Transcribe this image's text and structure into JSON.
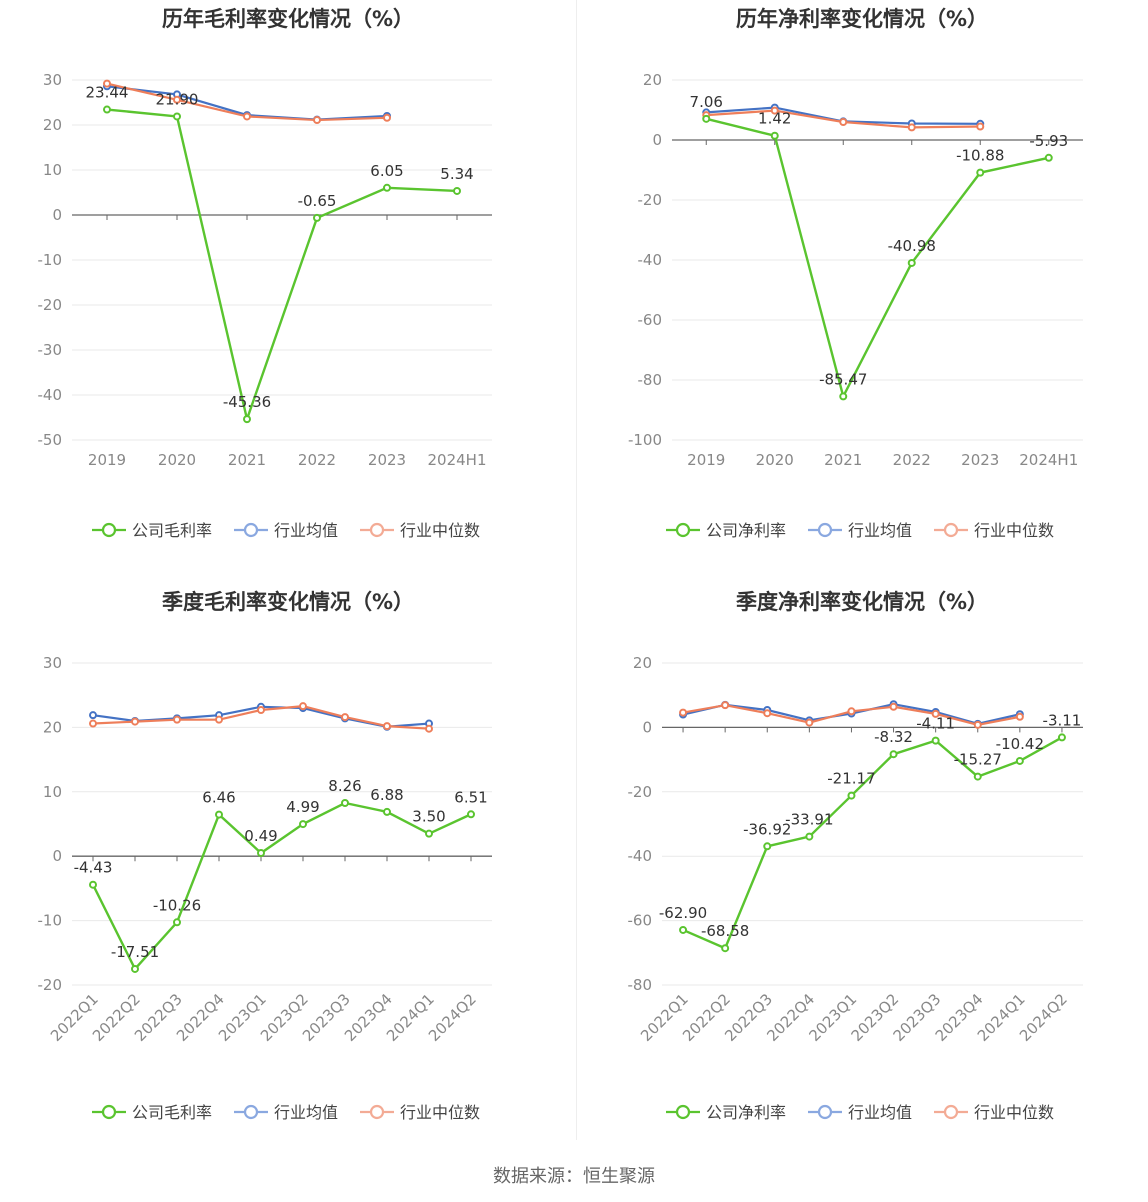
{
  "colors": {
    "company": "#5ac42f",
    "industry_avg": "#4472c4",
    "industry_median": "#ee7e5a",
    "legend_avg": "#8aa8e0",
    "legend_median": "#f3ab95",
    "grid": "#e9e9e9",
    "axis": "#666666",
    "tick_text": "#888888",
    "label_text": "#333333",
    "title_text": "#333333"
  },
  "source": "数据来源：恒生聚源",
  "charts": [
    {
      "id": "annual-gross",
      "type": "line",
      "title": "历年毛利率变化情况（%）",
      "categories": [
        "2019",
        "2020",
        "2021",
        "2022",
        "2023",
        "2024H1"
      ],
      "ylim": [
        -50,
        30
      ],
      "yticks": [
        30,
        20,
        10,
        0,
        -10,
        -20,
        -30,
        -40,
        -50
      ],
      "rotate_labels": false,
      "legend": [
        "公司毛利率",
        "行业均值",
        "行业中位数"
      ],
      "series": [
        {
          "name": "公司毛利率",
          "role": "company",
          "values": [
            23.44,
            21.9,
            -45.36,
            -0.65,
            6.05,
            5.34
          ],
          "labels": [
            "23.44",
            "21.90",
            "-45.36",
            "-0.65",
            "6.05",
            "5.34"
          ]
        },
        {
          "name": "行业均值",
          "role": "industry_avg",
          "values": [
            28.6,
            26.8,
            22.2,
            21.2,
            22.0,
            null
          ]
        },
        {
          "name": "行业中位数",
          "role": "industry_median",
          "values": [
            29.2,
            25.6,
            21.9,
            21.1,
            21.6,
            null
          ]
        }
      ]
    },
    {
      "id": "annual-net",
      "type": "line",
      "title": "历年净利率变化情况（%）",
      "categories": [
        "2019",
        "2020",
        "2021",
        "2022",
        "2023",
        "2024H1"
      ],
      "ylim": [
        -100,
        20
      ],
      "yticks": [
        20,
        0,
        -20,
        -40,
        -60,
        -80,
        -100
      ],
      "rotate_labels": false,
      "legend": [
        "公司净利率",
        "行业均值",
        "行业中位数"
      ],
      "series": [
        {
          "name": "公司净利率",
          "role": "company",
          "values": [
            7.06,
            1.42,
            -85.47,
            -40.98,
            -10.88,
            -5.93
          ],
          "labels": [
            "7.06",
            "1.42",
            "-85.47",
            "-40.98",
            "-10.88",
            "-5.93"
          ]
        },
        {
          "name": "行业均值",
          "role": "industry_avg",
          "values": [
            9.2,
            10.8,
            6.2,
            5.5,
            5.4,
            null
          ]
        },
        {
          "name": "行业中位数",
          "role": "industry_median",
          "values": [
            8.3,
            9.8,
            6.0,
            4.2,
            4.5,
            null
          ]
        }
      ]
    },
    {
      "id": "quarterly-gross",
      "type": "line",
      "title": "季度毛利率变化情况（%）",
      "categories": [
        "2022Q1",
        "2022Q2",
        "2022Q3",
        "2022Q4",
        "2023Q1",
        "2023Q2",
        "2023Q3",
        "2023Q4",
        "2024Q1",
        "2024Q2"
      ],
      "ylim": [
        -20,
        30
      ],
      "yticks": [
        30,
        20,
        10,
        0,
        -10,
        -20
      ],
      "rotate_labels": true,
      "legend": [
        "公司毛利率",
        "行业均值",
        "行业中位数"
      ],
      "series": [
        {
          "name": "公司毛利率",
          "role": "company",
          "values": [
            -4.43,
            -17.51,
            -10.26,
            6.46,
            0.49,
            4.99,
            8.26,
            6.88,
            3.5,
            6.51
          ],
          "labels": [
            "-4.43",
            "-17.51",
            "-10.26",
            "6.46",
            "0.49",
            "4.99",
            "8.26",
            "6.88",
            "3.50",
            "6.51"
          ]
        },
        {
          "name": "行业均值",
          "role": "industry_avg",
          "values": [
            21.9,
            21.0,
            21.4,
            21.9,
            23.2,
            23.0,
            21.4,
            20.1,
            20.6,
            null
          ]
        },
        {
          "name": "行业中位数",
          "role": "industry_median",
          "values": [
            20.6,
            20.9,
            21.2,
            21.2,
            22.7,
            23.3,
            21.6,
            20.2,
            19.8,
            null
          ]
        }
      ]
    },
    {
      "id": "quarterly-net",
      "type": "line",
      "title": "季度净利率变化情况（%）",
      "categories": [
        "2022Q1",
        "2022Q2",
        "2022Q3",
        "2022Q4",
        "2023Q1",
        "2023Q2",
        "2023Q3",
        "2023Q4",
        "2024Q1",
        "2024Q2"
      ],
      "ylim": [
        -80,
        20
      ],
      "yticks": [
        20,
        0,
        -20,
        -40,
        -60,
        -80
      ],
      "rotate_labels": true,
      "legend": [
        "公司净利率",
        "行业均值",
        "行业中位数"
      ],
      "series": [
        {
          "name": "公司净利率",
          "role": "company",
          "values": [
            -62.9,
            -68.58,
            -36.92,
            -33.91,
            -21.17,
            -8.32,
            -4.11,
            -15.27,
            -10.42,
            -3.11
          ],
          "labels": [
            "-62.90",
            "-68.58",
            "-36.92",
            "-33.91",
            "-21.17",
            "-8.32",
            "-4.11",
            "-15.27",
            "-10.42",
            "-3.11"
          ]
        },
        {
          "name": "行业均值",
          "role": "industry_avg",
          "values": [
            4.0,
            7.0,
            5.4,
            2.2,
            4.3,
            7.2,
            4.8,
            1.1,
            4.1,
            null
          ]
        },
        {
          "name": "行业中位数",
          "role": "industry_median",
          "values": [
            4.6,
            6.9,
            4.4,
            1.5,
            5.0,
            6.4,
            4.2,
            0.8,
            3.3,
            null
          ]
        }
      ]
    }
  ]
}
